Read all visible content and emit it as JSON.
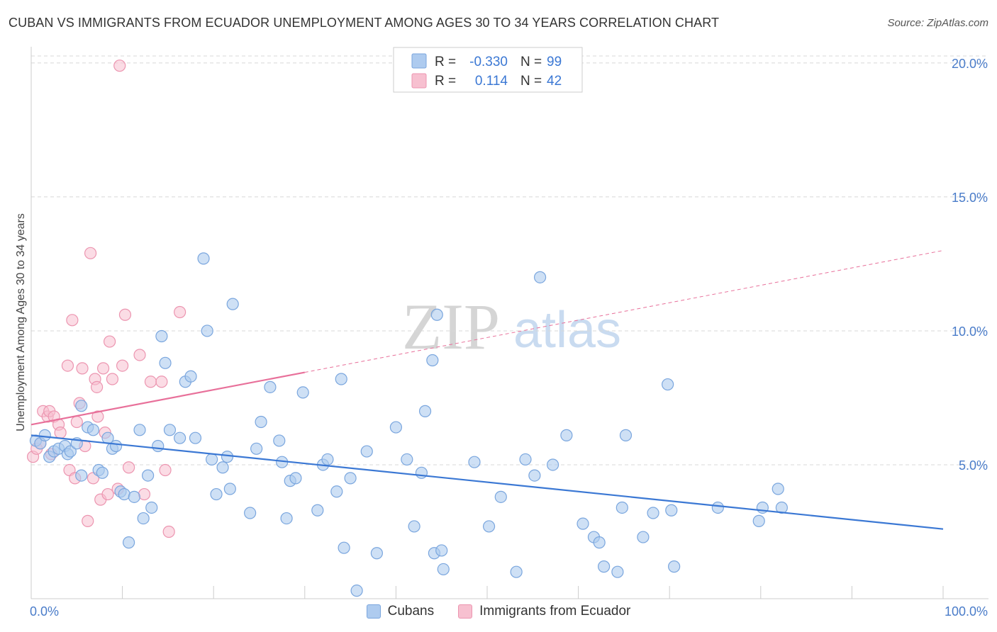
{
  "title": "CUBAN VS IMMIGRANTS FROM ECUADOR UNEMPLOYMENT AMONG AGES 30 TO 34 YEARS CORRELATION CHART",
  "source": "Source: ZipAtlas.com",
  "watermark": {
    "zip": "ZIP",
    "atlas": "atlas"
  },
  "legend_top": [
    {
      "r_label": "R =",
      "r_value": "-0.330",
      "n_label": "N =",
      "n_value": "99"
    },
    {
      "r_label": "R =",
      "r_value": "0.114",
      "n_label": "N =",
      "n_value": "42"
    }
  ],
  "legend_bottom": [
    {
      "label": "Cubans"
    },
    {
      "label": "Immigrants from Ecuador"
    }
  ],
  "colors": {
    "blue_fill": "#aecbef",
    "blue_stroke": "#7aa6de",
    "blue_line": "#3b78d4",
    "pink_fill": "#f7c0d0",
    "pink_stroke": "#ec95b0",
    "pink_line": "#e8709a",
    "tick": "#4a7cc9",
    "grid": "#d8d8d8"
  },
  "chart_data": {
    "type": "scatter",
    "title": "CUBAN VS IMMIGRANTS FROM ECUADOR UNEMPLOYMENT AMONG AGES 30 TO 34 YEARS CORRELATION CHART",
    "xlabel": "",
    "ylabel": "Unemployment Among Ages 30 to 34 years",
    "xlim": [
      0,
      100
    ],
    "ylim": [
      0,
      20.5
    ],
    "x_tick_labels": [
      "0.0%",
      "100.0%"
    ],
    "y_ticks": [
      5,
      10,
      15,
      20
    ],
    "y_tick_labels": [
      "5.0%",
      "10.0%",
      "15.0%",
      "20.0%"
    ],
    "grid": true,
    "series": [
      {
        "name": "Cubans",
        "r": -0.33,
        "n": 99,
        "trend": {
          "x0": 0,
          "y0": 6.1,
          "x1": 100,
          "y1": 2.6,
          "dashed_after": null
        },
        "points": [
          [
            0.5,
            5.9
          ],
          [
            1.0,
            5.8
          ],
          [
            1.5,
            6.1
          ],
          [
            2.0,
            5.3
          ],
          [
            2.5,
            5.5
          ],
          [
            3.0,
            5.6
          ],
          [
            3.7,
            5.7
          ],
          [
            4.0,
            5.4
          ],
          [
            4.3,
            5.5
          ],
          [
            5.0,
            5.8
          ],
          [
            5.5,
            4.6
          ],
          [
            5.5,
            7.2
          ],
          [
            6.2,
            6.4
          ],
          [
            6.8,
            6.3
          ],
          [
            7.4,
            4.8
          ],
          [
            7.8,
            4.7
          ],
          [
            8.4,
            6.0
          ],
          [
            8.9,
            5.6
          ],
          [
            9.3,
            5.7
          ],
          [
            9.8,
            4.0
          ],
          [
            10.2,
            3.9
          ],
          [
            10.7,
            2.1
          ],
          [
            11.3,
            3.8
          ],
          [
            11.9,
            6.3
          ],
          [
            12.3,
            3.0
          ],
          [
            12.8,
            4.6
          ],
          [
            13.2,
            3.4
          ],
          [
            13.9,
            5.7
          ],
          [
            14.3,
            9.8
          ],
          [
            14.7,
            8.8
          ],
          [
            15.2,
            6.3
          ],
          [
            16.3,
            6.0
          ],
          [
            16.9,
            8.1
          ],
          [
            17.5,
            8.3
          ],
          [
            18.0,
            6.0
          ],
          [
            18.9,
            12.7
          ],
          [
            19.3,
            10.0
          ],
          [
            19.8,
            5.2
          ],
          [
            20.3,
            3.9
          ],
          [
            21.0,
            4.9
          ],
          [
            21.5,
            5.3
          ],
          [
            21.8,
            4.1
          ],
          [
            22.1,
            11.0
          ],
          [
            24.0,
            3.2
          ],
          [
            24.7,
            5.6
          ],
          [
            25.2,
            6.6
          ],
          [
            26.2,
            7.9
          ],
          [
            27.2,
            5.9
          ],
          [
            27.5,
            5.1
          ],
          [
            28.0,
            3.0
          ],
          [
            28.4,
            4.4
          ],
          [
            29.0,
            4.5
          ],
          [
            29.8,
            7.7
          ],
          [
            31.4,
            3.3
          ],
          [
            32.0,
            5.0
          ],
          [
            32.5,
            5.2
          ],
          [
            33.5,
            4.0
          ],
          [
            34.0,
            8.2
          ],
          [
            34.3,
            1.9
          ],
          [
            35.0,
            4.5
          ],
          [
            35.7,
            0.3
          ],
          [
            36.8,
            5.5
          ],
          [
            37.9,
            1.7
          ],
          [
            40.0,
            6.4
          ],
          [
            41.2,
            5.2
          ],
          [
            42.0,
            2.7
          ],
          [
            42.8,
            4.7
          ],
          [
            43.2,
            7.0
          ],
          [
            44.0,
            8.9
          ],
          [
            44.2,
            1.7
          ],
          [
            44.5,
            10.6
          ],
          [
            45.0,
            1.8
          ],
          [
            45.2,
            1.1
          ],
          [
            48.6,
            5.1
          ],
          [
            50.2,
            2.7
          ],
          [
            51.5,
            3.8
          ],
          [
            53.2,
            1.0
          ],
          [
            54.2,
            5.2
          ],
          [
            55.2,
            4.6
          ],
          [
            55.8,
            12.0
          ],
          [
            57.2,
            5.0
          ],
          [
            58.7,
            6.1
          ],
          [
            60.5,
            2.8
          ],
          [
            61.7,
            2.3
          ],
          [
            62.3,
            2.1
          ],
          [
            62.8,
            1.2
          ],
          [
            64.3,
            1.0
          ],
          [
            64.8,
            3.4
          ],
          [
            65.2,
            6.1
          ],
          [
            67.1,
            2.3
          ],
          [
            68.2,
            3.2
          ],
          [
            69.8,
            8.0
          ],
          [
            70.2,
            3.3
          ],
          [
            70.5,
            1.2
          ],
          [
            75.3,
            3.4
          ],
          [
            79.8,
            2.9
          ],
          [
            80.2,
            3.4
          ],
          [
            81.9,
            4.1
          ],
          [
            82.3,
            3.4
          ]
        ]
      },
      {
        "name": "Immigrants from Ecuador",
        "r": 0.114,
        "n": 42,
        "trend": {
          "x0": 0,
          "y0": 6.5,
          "x1": 100,
          "y1": 13.0,
          "dashed_after": 30
        },
        "points": [
          [
            0.2,
            5.3
          ],
          [
            0.6,
            5.6
          ],
          [
            1.0,
            5.8
          ],
          [
            1.3,
            7.0
          ],
          [
            1.8,
            6.8
          ],
          [
            2.0,
            7.0
          ],
          [
            2.2,
            5.4
          ],
          [
            2.5,
            6.8
          ],
          [
            3.0,
            6.5
          ],
          [
            3.2,
            6.2
          ],
          [
            4.0,
            8.7
          ],
          [
            4.2,
            4.8
          ],
          [
            4.5,
            10.4
          ],
          [
            4.8,
            4.5
          ],
          [
            5.0,
            6.6
          ],
          [
            5.3,
            7.3
          ],
          [
            5.6,
            8.6
          ],
          [
            5.9,
            5.7
          ],
          [
            6.2,
            2.9
          ],
          [
            6.5,
            12.9
          ],
          [
            6.8,
            4.5
          ],
          [
            7.0,
            8.2
          ],
          [
            7.2,
            7.9
          ],
          [
            7.3,
            6.8
          ],
          [
            7.6,
            3.7
          ],
          [
            7.9,
            8.6
          ],
          [
            8.1,
            6.2
          ],
          [
            8.4,
            3.9
          ],
          [
            8.6,
            9.6
          ],
          [
            8.9,
            8.2
          ],
          [
            9.5,
            4.1
          ],
          [
            9.7,
            19.9
          ],
          [
            10.0,
            8.7
          ],
          [
            10.3,
            10.6
          ],
          [
            10.7,
            4.9
          ],
          [
            11.9,
            9.1
          ],
          [
            12.4,
            3.9
          ],
          [
            13.1,
            8.1
          ],
          [
            14.3,
            8.1
          ],
          [
            14.7,
            4.8
          ],
          [
            15.1,
            2.5
          ],
          [
            16.3,
            10.7
          ]
        ]
      }
    ]
  }
}
